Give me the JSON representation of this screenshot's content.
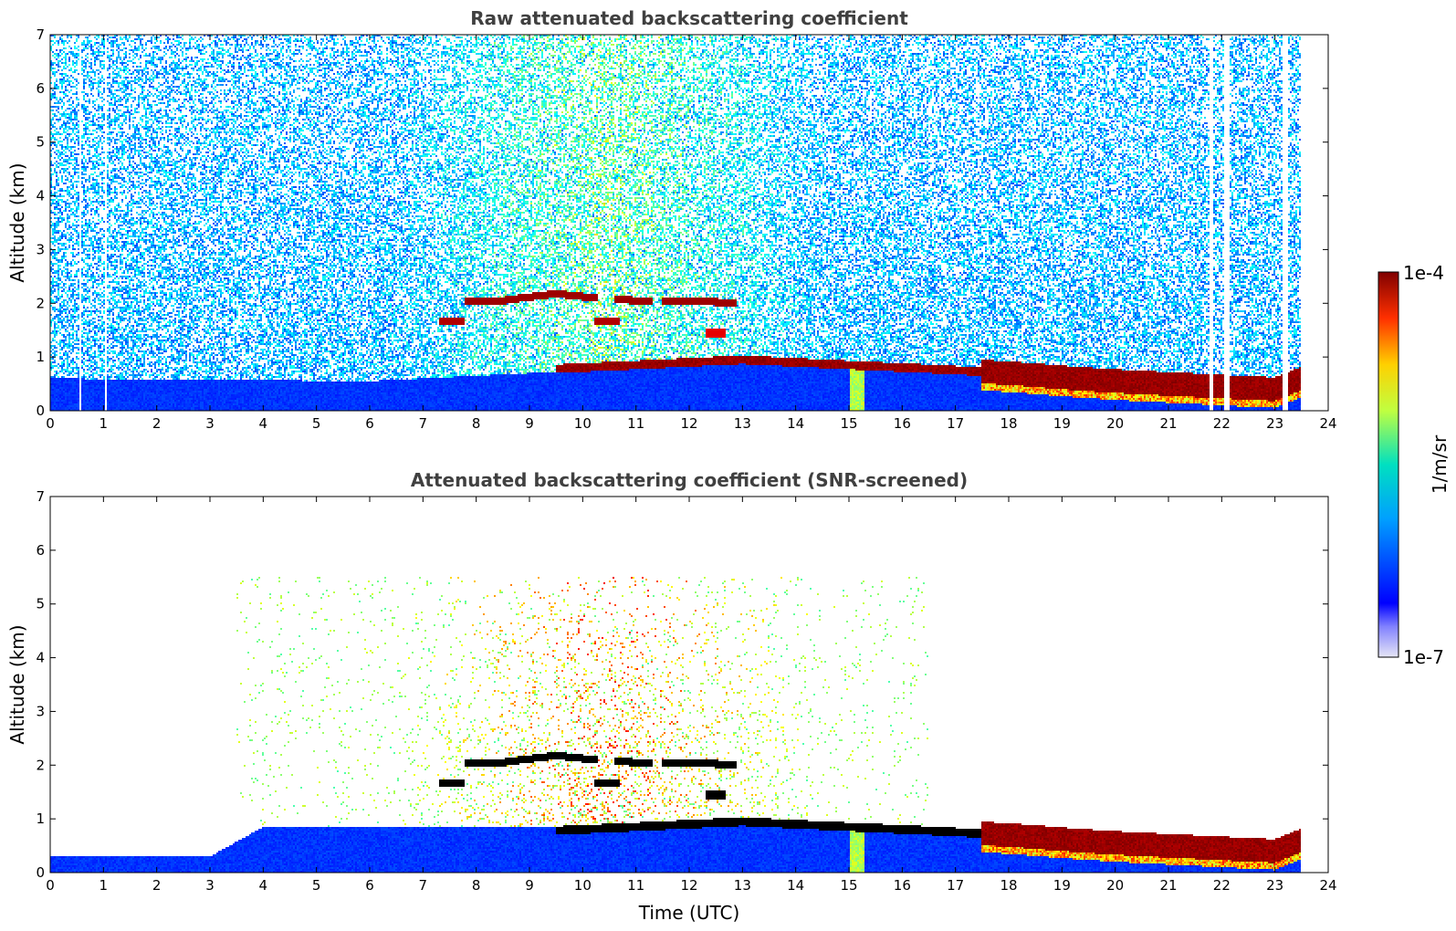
{
  "chart_data": [
    {
      "type": "heatmap",
      "title": "Raw attenuated backscattering coefficient",
      "xlabel": "",
      "ylabel": "Altitude (km)",
      "xlim": [
        0,
        24
      ],
      "ylim": [
        0,
        7
      ],
      "xticks": [
        0,
        1,
        2,
        3,
        4,
        5,
        6,
        7,
        8,
        9,
        10,
        11,
        12,
        13,
        14,
        15,
        16,
        17,
        18,
        19,
        20,
        21,
        22,
        23,
        24
      ],
      "yticks": [
        0,
        1,
        2,
        3,
        4,
        5,
        6,
        7
      ],
      "colorscale": "jet",
      "features": {
        "boundary_layer": {
          "x": [
            0,
            6,
            10,
            13,
            15,
            17,
            20,
            23.5
          ],
          "top": [
            0.6,
            0.55,
            0.75,
            0.9,
            0.85,
            0.7,
            0.55,
            0.6
          ]
        },
        "cloud_top_layer": {
          "x": [
            9.5,
            11,
            13,
            15,
            16.5,
            18,
            19,
            20,
            21,
            22,
            23,
            23.5
          ],
          "y": [
            0.78,
            0.85,
            0.95,
            0.85,
            0.78,
            0.7,
            0.62,
            0.55,
            0.5,
            0.45,
            0.4,
            0.6
          ]
        },
        "elevated_layer": {
          "x": [
            7.8,
            8.5,
            9.5,
            10.2,
            11,
            12,
            12.9
          ],
          "y": [
            2.05,
            2.05,
            2.18,
            2.1,
            2.05,
            2.05,
            2.0
          ]
        },
        "data_end_hour": 23.5
      }
    },
    {
      "type": "heatmap",
      "title": "Attenuated backscattering coefficient (SNR-screened)",
      "xlabel": "Time (UTC)",
      "ylabel": "Altitude (km)",
      "xlim": [
        0,
        24
      ],
      "ylim": [
        0,
        7
      ],
      "xticks": [
        0,
        1,
        2,
        3,
        4,
        5,
        6,
        7,
        8,
        9,
        10,
        11,
        12,
        13,
        14,
        15,
        16,
        17,
        18,
        19,
        20,
        21,
        22,
        23,
        24
      ],
      "yticks": [
        0,
        1,
        2,
        3,
        4,
        5,
        6,
        7
      ],
      "colorscale": "jet",
      "features": {
        "boundary_layer": {
          "x": [
            0,
            3,
            4,
            6,
            10,
            13,
            15,
            17,
            20,
            23.5
          ],
          "top": [
            0.3,
            0.3,
            0.85,
            0.85,
            0.85,
            0.9,
            0.85,
            0.7,
            0.5,
            0.3
          ]
        },
        "data_end_hour": 23.5
      }
    }
  ],
  "colorbar": {
    "label": "1/m/sr",
    "max_label": "1e-4",
    "min_label": "1e-7",
    "scale": "log"
  }
}
